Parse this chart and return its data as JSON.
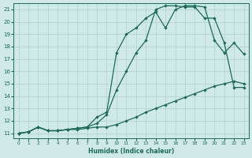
{
  "xlabel": "Humidex (Indice chaleur)",
  "bg_color": "#cfe8e8",
  "grid_color": "#b0d0d0",
  "line_color": "#1a6b5a",
  "xlim": [
    -0.5,
    23.5
  ],
  "ylim": [
    10.6,
    21.5
  ],
  "xticks": [
    0,
    1,
    2,
    3,
    4,
    5,
    6,
    7,
    8,
    9,
    10,
    11,
    12,
    13,
    14,
    15,
    16,
    17,
    18,
    19,
    20,
    21,
    22,
    23
  ],
  "yticks": [
    11,
    12,
    13,
    14,
    15,
    16,
    17,
    18,
    19,
    20,
    21
  ],
  "line1_x": [
    0,
    1,
    2,
    3,
    4,
    5,
    6,
    7,
    8,
    9,
    10,
    11,
    12,
    13,
    14,
    15,
    16,
    17,
    18,
    19,
    20,
    21,
    22,
    23
  ],
  "line1_y": [
    11.0,
    11.1,
    11.5,
    11.2,
    11.2,
    11.3,
    11.3,
    11.4,
    11.5,
    11.5,
    11.7,
    12.0,
    12.3,
    12.7,
    13.0,
    13.3,
    13.6,
    13.9,
    14.2,
    14.5,
    14.8,
    15.0,
    15.2,
    15.0
  ],
  "line2_x": [
    0,
    1,
    2,
    3,
    4,
    5,
    6,
    7,
    8,
    9,
    10,
    11,
    12,
    13,
    14,
    15,
    16,
    17,
    18,
    19,
    20,
    21,
    22,
    23
  ],
  "line2_y": [
    11.0,
    11.1,
    11.5,
    11.2,
    11.2,
    11.3,
    11.4,
    11.5,
    11.8,
    12.5,
    14.5,
    16.0,
    17.5,
    18.5,
    21.0,
    21.3,
    21.3,
    21.2,
    21.2,
    20.3,
    20.3,
    18.3,
    14.7,
    14.7
  ],
  "line3_x": [
    0,
    1,
    2,
    3,
    4,
    5,
    6,
    7,
    8,
    9,
    10,
    11,
    12,
    13,
    14,
    15,
    16,
    17,
    18,
    19,
    20,
    21,
    22,
    23
  ],
  "line3_y": [
    11.0,
    11.1,
    11.5,
    11.2,
    11.2,
    11.3,
    11.4,
    11.5,
    12.3,
    12.7,
    17.5,
    19.0,
    19.5,
    20.3,
    20.8,
    19.5,
    21.0,
    21.3,
    21.3,
    21.2,
    18.5,
    17.5,
    18.3,
    17.4
  ]
}
